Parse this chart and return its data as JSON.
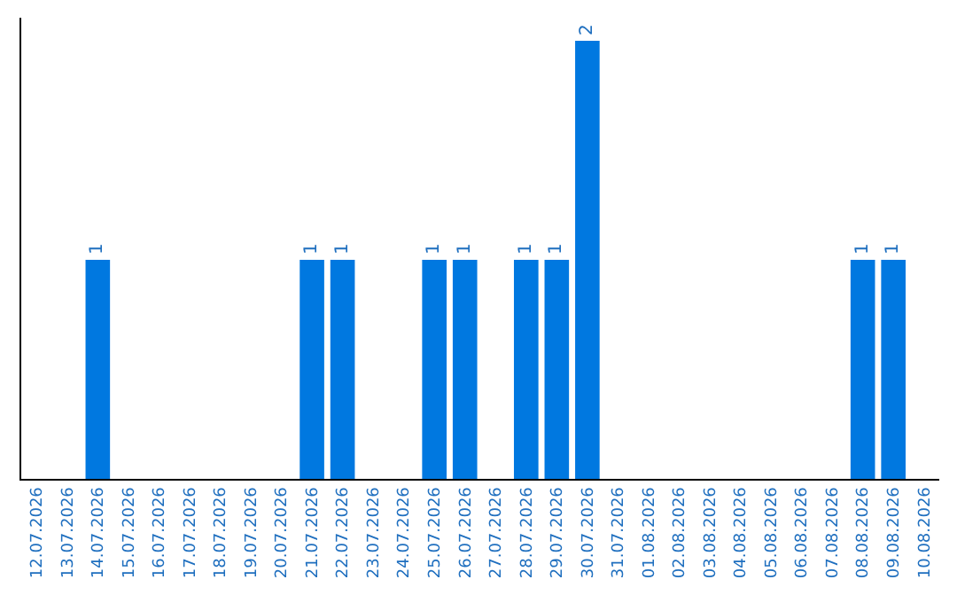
{
  "chart_data": {
    "type": "bar",
    "categories": [
      "12.07.2026",
      "13.07.2026",
      "14.07.2026",
      "15.07.2026",
      "16.07.2026",
      "17.07.2026",
      "18.07.2026",
      "19.07.2026",
      "20.07.2026",
      "21.07.2026",
      "22.07.2026",
      "23.07.2026",
      "24.07.2026",
      "25.07.2026",
      "26.07.2026",
      "27.07.2026",
      "28.07.2026",
      "29.07.2026",
      "30.07.2026",
      "31.07.2026",
      "01.08.2026",
      "02.08.2026",
      "03.08.2026",
      "04.08.2026",
      "05.08.2026",
      "06.08.2026",
      "07.08.2026",
      "08.08.2026",
      "09.08.2026",
      "10.08.2026"
    ],
    "values": [
      0,
      0,
      1,
      0,
      0,
      0,
      0,
      0,
      0,
      1,
      1,
      0,
      0,
      1,
      1,
      0,
      1,
      1,
      2,
      0,
      0,
      0,
      0,
      0,
      0,
      0,
      0,
      1,
      1,
      0
    ],
    "color": "#0078e0",
    "value_labels": [
      null,
      null,
      "1",
      null,
      null,
      null,
      null,
      null,
      null,
      "1",
      "1",
      null,
      null,
      "1",
      "1",
      null,
      "1",
      "1",
      "2",
      null,
      null,
      null,
      null,
      null,
      null,
      null,
      null,
      "1",
      "1",
      null
    ],
    "tick_labels": "x",
    "legend": false
  }
}
